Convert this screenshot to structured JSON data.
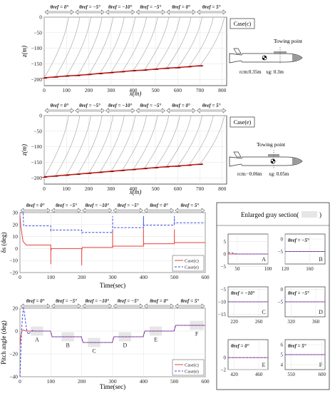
{
  "theta_labels": [
    "θref = 0°",
    "θref = −5°",
    "θref = −10°",
    "θref = −5°",
    "θref = 0°",
    "θref = 5°"
  ],
  "colors": {
    "case_c": "#e8423f",
    "case_e": "#3b49e6",
    "tether": "#9a9a9a",
    "path": "#c81e1e",
    "box_fill": "#e6e6e6"
  },
  "chart_data": [
    {
      "type": "line",
      "panel": "case_c_trajectory",
      "label": "Case(c)",
      "xlabel": "x(m)",
      "ylabel": "z(m)",
      "xlim": [
        0,
        820
      ],
      "ylim": [
        -220,
        0
      ],
      "xticks": [
        0,
        100,
        200,
        300,
        400,
        500,
        600,
        700,
        800
      ],
      "yticks": [
        0,
        -50,
        -100,
        -150,
        -200
      ],
      "x": [
        0,
        50,
        100,
        150,
        200,
        250,
        300,
        350,
        400,
        450,
        500,
        550,
        600,
        650,
        700
      ],
      "z": [
        -195,
        -192,
        -189,
        -187,
        -184,
        -181,
        -178,
        -175,
        -172,
        -170,
        -167,
        -164,
        -162,
        -159,
        -156
      ],
      "vehicle": {
        "title": "Towing point",
        "r_cm": "rcm:0.35m",
        "x_g": "xg: 0.3m"
      }
    },
    {
      "type": "line",
      "panel": "case_e_trajectory",
      "label": "Case(e)",
      "xlabel": "x(m)",
      "ylabel": "z(m)",
      "xlim": [
        0,
        820
      ],
      "ylim": [
        -220,
        0
      ],
      "xticks": [
        0,
        100,
        200,
        300,
        400,
        500,
        600,
        700,
        800
      ],
      "yticks": [
        0,
        -50,
        -100,
        -150,
        -200
      ],
      "x": [
        0,
        50,
        100,
        150,
        200,
        250,
        300,
        350,
        400,
        450,
        500,
        550,
        600,
        650,
        700
      ],
      "z": [
        -197,
        -194,
        -191,
        -188,
        -185,
        -182,
        -179,
        -176,
        -173,
        -170,
        -167,
        -164,
        -162,
        -159,
        -156
      ],
      "vehicle": {
        "title": "Towing point",
        "r_cm": "rcm:−0.06m",
        "x_g": "xg: 0.05m"
      }
    },
    {
      "type": "line",
      "panel": "delta_s",
      "xlabel": "Time(sec)",
      "ylabel": "δs (deg)",
      "xlim": [
        0,
        600
      ],
      "ylim": [
        -20,
        30
      ],
      "xticks": [
        0,
        100,
        200,
        300,
        400,
        500,
        600
      ],
      "yticks": [
        30,
        20,
        10,
        0,
        -10,
        -20
      ],
      "legend": [
        "Case(c)",
        "Case(e)"
      ],
      "legend_position": "bottom-right",
      "series": [
        {
          "name": "Case(c)",
          "x": [
            0,
            3,
            10,
            20,
            30,
            99.9,
            100,
            100.1,
            102,
            110,
            199.9,
            200,
            200.1,
            202,
            210,
            299.9,
            300,
            300.1,
            302,
            310,
            399.9,
            400,
            400.1,
            402,
            410,
            499.9,
            500,
            500.1,
            502,
            510,
            600
          ],
          "y": [
            28,
            18,
            6,
            3,
            3,
            3,
            -13,
            -2,
            0,
            0,
            0,
            -14,
            -1,
            1,
            1,
            1,
            16,
            1,
            2,
            2,
            2,
            17,
            3,
            4,
            4,
            4,
            16,
            5,
            5,
            5,
            5
          ]
        },
        {
          "name": "Case(e)",
          "x": [
            0,
            10,
            12,
            30,
            99.9,
            100,
            100.1,
            104,
            199.9,
            200,
            200.1,
            204,
            299.9,
            300,
            300.1,
            304,
            399.9,
            400,
            400.1,
            404,
            499.9,
            500,
            500.1,
            504,
            600
          ],
          "y": [
            30,
            30,
            19,
            19,
            19,
            14,
            16,
            15.5,
            15.5,
            14,
            13,
            13.5,
            13.5,
            27,
            17,
            17.5,
            17.5,
            27,
            19,
            19.5,
            19.5,
            27,
            21,
            21.5,
            21.5
          ]
        }
      ]
    },
    {
      "type": "line",
      "panel": "pitch_angle",
      "xlabel": "Time(sec)",
      "ylabel": "Pitch angle (deg)",
      "xlim": [
        0,
        600
      ],
      "ylim": [
        -40,
        20
      ],
      "xticks": [
        0,
        100,
        200,
        300,
        400,
        500,
        600
      ],
      "yticks": [
        20,
        0,
        -20,
        -40
      ],
      "legend": [
        "Case(c)",
        "Case(e)"
      ],
      "legend_position": "bottom-right",
      "section_labels": [
        "A",
        "B",
        "C",
        "D",
        "E",
        "F"
      ],
      "section_boxes": [
        [
          35,
          75
        ],
        [
          135,
          175
        ],
        [
          220,
          260
        ],
        [
          320,
          360
        ],
        [
          420,
          460
        ],
        [
          550,
          595
        ]
      ],
      "series": [
        {
          "name": "Case(c)",
          "x": [
            0,
            3,
            6,
            10,
            20,
            99,
            104,
            120,
            199,
            204,
            220,
            299,
            304,
            320,
            399,
            404,
            420,
            499,
            504,
            600
          ],
          "y": [
            -12,
            -4,
            0,
            1,
            0,
            0,
            -5,
            -5,
            -5,
            -10,
            -10,
            -10,
            -5,
            -5,
            -5,
            0,
            0,
            0,
            5,
            5
          ]
        },
        {
          "name": "Case(e)",
          "x": [
            0,
            2,
            5,
            8,
            11,
            14,
            18,
            22,
            27,
            33,
            40,
            50,
            99,
            104,
            120,
            199,
            204,
            220,
            299,
            304,
            320,
            399,
            404,
            420,
            499,
            504,
            600
          ],
          "y": [
            -40,
            -25,
            0,
            12,
            20,
            17,
            8,
            1,
            -3,
            -1,
            0.5,
            0,
            0,
            -5,
            -5,
            -5,
            -10,
            -10,
            -10,
            -5,
            -5,
            -5,
            0,
            0,
            0,
            5,
            5
          ]
        }
      ]
    },
    {
      "type": "line",
      "panel": "enlarged_gray_section",
      "title": "Enlarged gray section(",
      "title_end": ")",
      "subplots": [
        {
          "label": "A",
          "theta": "θref = 0°",
          "xlim": [
            35,
            100
          ],
          "ylim": [
            -4,
            8
          ],
          "xticks": [
            50,
            100
          ],
          "yticks": [
            5,
            0,
            -5
          ],
          "ref": 0,
          "show_theta": false
        },
        {
          "label": "B",
          "theta": "θref = −5°",
          "xlim": [
            120,
            185
          ],
          "ylim": [
            -10,
            2
          ],
          "xticks": [
            120,
            160
          ],
          "yticks": [
            0,
            -5
          ],
          "ref": -5,
          "show_theta": true
        },
        {
          "label": "C",
          "theta": "θref = −10°",
          "xlim": [
            210,
            275
          ],
          "ylim": [
            -16,
            -4
          ],
          "xticks": [
            220,
            260
          ],
          "yticks": [
            -5,
            -10,
            -15
          ],
          "ref": -10,
          "show_theta": true
        },
        {
          "label": "D",
          "theta": "θref = −5°",
          "xlim": [
            310,
            375
          ],
          "ylim": [
            -11,
            1
          ],
          "xticks": [
            320,
            360
          ],
          "yticks": [
            0,
            -5
          ],
          "ref": -5,
          "show_theta": true
        },
        {
          "label": "E",
          "theta": "θref = 0°",
          "xlim": [
            410,
            475
          ],
          "ylim": [
            -2,
            3
          ],
          "xticks": [
            420,
            460
          ],
          "yticks": [
            0,
            -2
          ],
          "ref": 0,
          "show_theta": true
        },
        {
          "label": "F",
          "theta": "θref = 5°",
          "xlim": [
            540,
            605
          ],
          "ylim": [
            3.5,
            6.5
          ],
          "xticks": [
            550,
            600
          ],
          "yticks": [
            6,
            5,
            4
          ],
          "ref": 5,
          "show_theta": true
        }
      ]
    }
  ]
}
